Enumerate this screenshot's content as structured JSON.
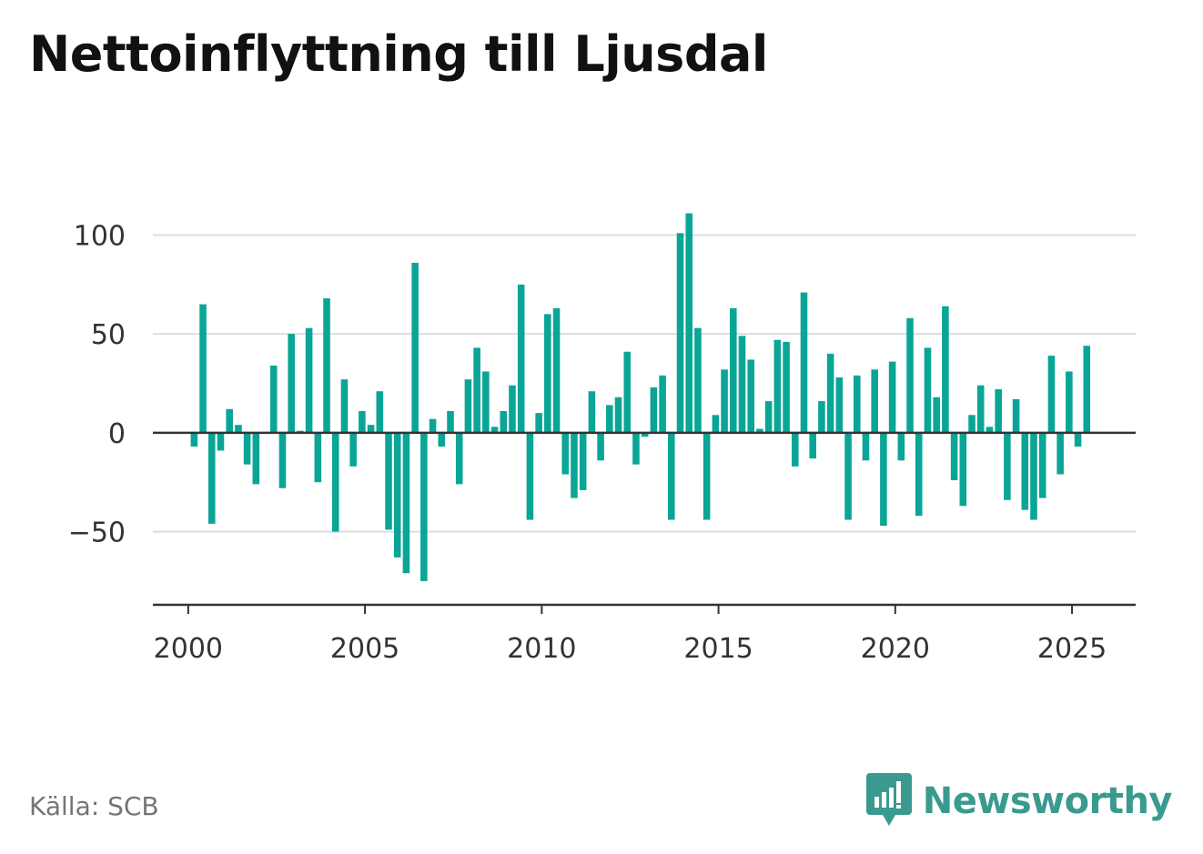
{
  "title": "Nettoinflyttning till Ljusdal",
  "source": "Källa: SCB",
  "brand": {
    "name": "Newsworthy",
    "icon": "newsworthy-logo-icon",
    "color": "#3a9a8f"
  },
  "colors": {
    "bar": "#0aa596",
    "grid": "#dddddd",
    "axis": "#333333"
  },
  "chart_data": {
    "type": "bar",
    "title": "Nettoinflyttning till Ljusdal",
    "xlabel": "",
    "ylabel": "",
    "ylim": [
      -87,
      120
    ],
    "xlim": [
      1999.0,
      2026.8
    ],
    "yticks": [
      100,
      50,
      0,
      -50
    ],
    "ytick_labels": [
      "100",
      "50",
      "0",
      "−50"
    ],
    "xticks": [
      2000,
      2005,
      2010,
      2015,
      2020,
      2025
    ],
    "xtick_labels": [
      "2000",
      "2005",
      "2010",
      "2015",
      "2020",
      "2025"
    ],
    "grid": true,
    "x": [
      2000.167,
      2000.417,
      2000.667,
      2000.917,
      2001.167,
      2001.417,
      2001.667,
      2001.917,
      2002.167,
      2002.417,
      2002.667,
      2002.917,
      2003.167,
      2003.417,
      2003.667,
      2003.917,
      2004.167,
      2004.417,
      2004.667,
      2004.917,
      2005.167,
      2005.417,
      2005.667,
      2005.917,
      2006.167,
      2006.417,
      2006.667,
      2006.917,
      2007.167,
      2007.417,
      2007.667,
      2007.917,
      2008.167,
      2008.417,
      2008.667,
      2008.917,
      2009.167,
      2009.417,
      2009.667,
      2009.917,
      2010.167,
      2010.417,
      2010.667,
      2010.917,
      2011.167,
      2011.417,
      2011.667,
      2011.917,
      2012.167,
      2012.417,
      2012.667,
      2012.917,
      2013.167,
      2013.417,
      2013.667,
      2013.917,
      2014.167,
      2014.417,
      2014.667,
      2014.917,
      2015.167,
      2015.417,
      2015.667,
      2015.917,
      2016.167,
      2016.417,
      2016.667,
      2016.917,
      2017.167,
      2017.417,
      2017.667,
      2017.917,
      2018.167,
      2018.417,
      2018.667,
      2018.917,
      2019.167,
      2019.417,
      2019.667,
      2019.917,
      2020.167,
      2020.417,
      2020.667,
      2020.917,
      2021.167,
      2021.417,
      2021.667,
      2021.917,
      2022.167,
      2022.417,
      2022.667,
      2022.917,
      2023.167,
      2023.417,
      2023.667,
      2023.917,
      2024.167,
      2024.417,
      2024.667,
      2024.917,
      2025.167,
      2025.417
    ],
    "values": [
      -7,
      65,
      -46,
      -9,
      12,
      4,
      -16,
      -26,
      0,
      34,
      -28,
      50,
      1,
      53,
      -25,
      68,
      -50,
      27,
      -17,
      11,
      4,
      21,
      -49,
      -63,
      -71,
      86,
      -75,
      7,
      -7,
      11,
      -26,
      27,
      43,
      31,
      3,
      11,
      24,
      75,
      -44,
      10,
      60,
      63,
      -21,
      -33,
      -29,
      21,
      -14,
      14,
      18,
      41,
      -16,
      -2,
      23,
      29,
      -44,
      101,
      111,
      53,
      -44,
      9,
      32,
      63,
      49,
      37,
      2,
      16,
      47,
      46,
      -17,
      71,
      -13,
      16,
      40,
      28,
      -44,
      29,
      -14,
      32,
      -47,
      36,
      -14,
      58,
      -42,
      43,
      18,
      64,
      -24,
      -37,
      9,
      24,
      3,
      22,
      -34,
      17,
      -39,
      -44,
      -33,
      39,
      -21,
      31,
      -7,
      44
    ]
  }
}
